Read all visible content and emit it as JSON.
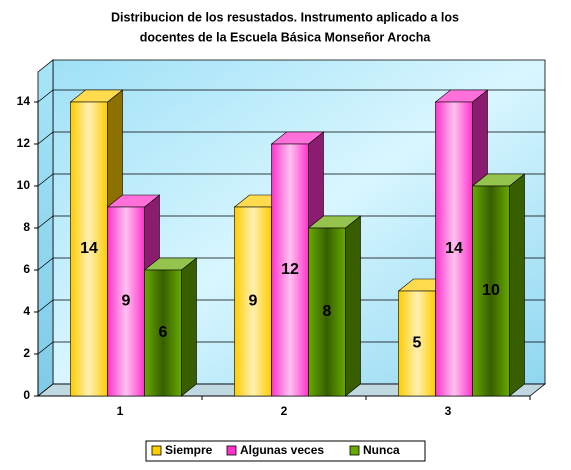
{
  "chart_data": {
    "type": "bar3d",
    "title": [
      "Distribucion de los resustados. Instrumento aplicado a los",
      "docentes de la Escuela Básica Monseñor Arocha"
    ],
    "categories": [
      "1",
      "2",
      "3"
    ],
    "series": [
      {
        "name": "Siempre",
        "color": "#ffcc00",
        "values": [
          14,
          9,
          5
        ]
      },
      {
        "name": "Algunas veces",
        "color": "#ff33cc",
        "values": [
          9,
          12,
          14
        ]
      },
      {
        "name": "Nunca",
        "color": "#66aa00",
        "values": [
          6,
          8,
          10
        ]
      }
    ],
    "ylim": [
      0,
      14
    ],
    "yticks": [
      0,
      2,
      4,
      6,
      8,
      10,
      12,
      14
    ],
    "grid": true,
    "legend": "bottom"
  }
}
